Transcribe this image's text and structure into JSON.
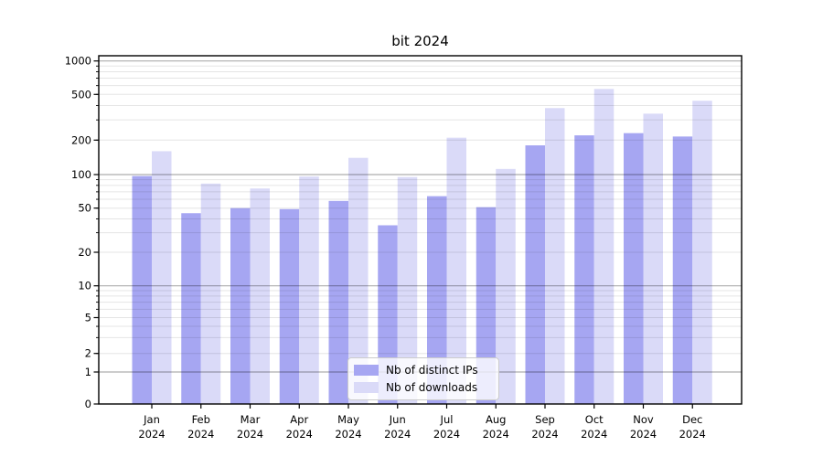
{
  "chart_data": {
    "type": "bar",
    "title": "bit 2024",
    "categories": [
      "Jan",
      "Feb",
      "Mar",
      "Apr",
      "May",
      "Jun",
      "Jul",
      "Aug",
      "Sep",
      "Oct",
      "Nov",
      "Dec"
    ],
    "year": "2024",
    "series": [
      {
        "name": "Nb of distinct IPs",
        "color": "#a6a6f2",
        "values": [
          97,
          45,
          50,
          49,
          58,
          35,
          64,
          51,
          180,
          220,
          230,
          215
        ]
      },
      {
        "name": "Nb of downloads",
        "color": "#dadaf8",
        "values": [
          160,
          83,
          75,
          96,
          140,
          95,
          210,
          112,
          380,
          560,
          340,
          440
        ]
      }
    ],
    "xlabel": "",
    "ylabel": "",
    "y_ticks": [
      0,
      1,
      2,
      5,
      10,
      20,
      50,
      100,
      200,
      500,
      1000
    ],
    "ylim": [
      0,
      1100
    ],
    "yscale": "symlog (log above 1, linear 0 to 1)",
    "grid": true,
    "legend_position": "lower center",
    "colors": {
      "bar_dark": "#a6a6f2",
      "bar_light": "#dadaf8",
      "major_grid": "#b0b0b0",
      "minor_grid": "#e4e4e4",
      "axis": "#000000"
    }
  }
}
